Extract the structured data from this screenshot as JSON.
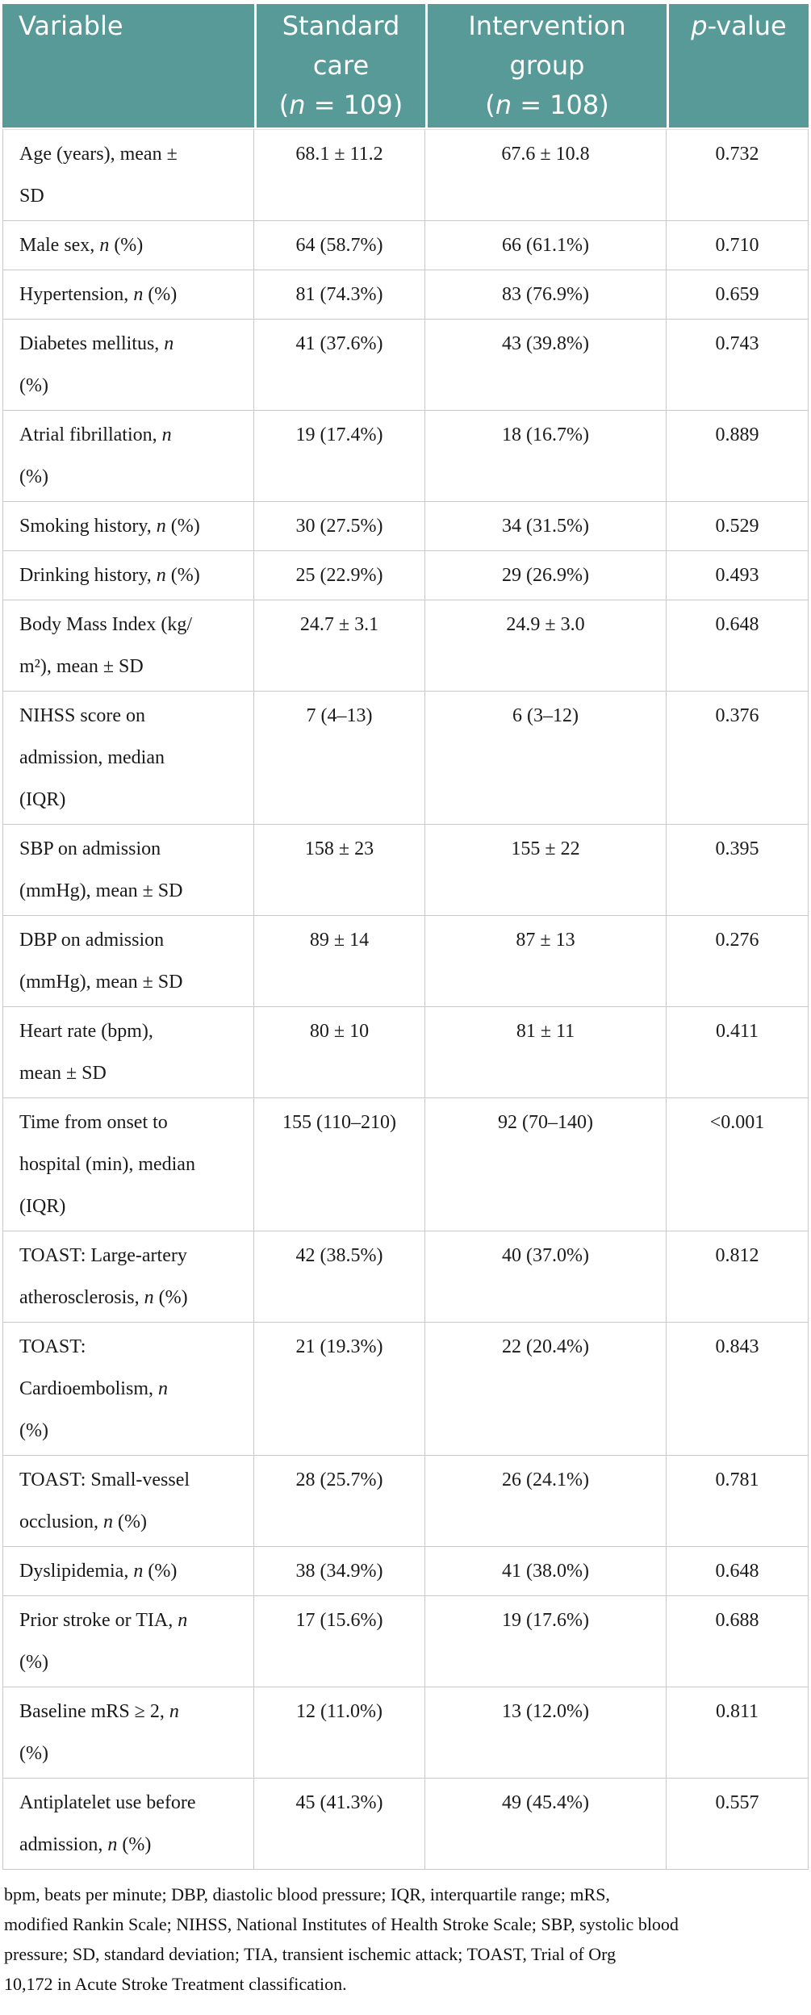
{
  "colors": {
    "header_bg": "#579a98",
    "header_text": "#ffffff",
    "border": "#c9c9c9",
    "body_text": "#1a1a1a"
  },
  "table": {
    "header": {
      "columns": [
        {
          "label": "Variable"
        },
        {
          "label": "Standard\ncare\n(*n* = 109)"
        },
        {
          "label": "Intervention\ngroup\n(*n* = 108)"
        },
        {
          "label": "*p*-value"
        }
      ]
    },
    "rows": [
      {
        "variable": "Age (years), mean ±\nSD",
        "standard_care": "68.1 ± 11.2",
        "intervention": "67.6 ± 10.8",
        "p_value": "0.732"
      },
      {
        "variable": "Male sex, *n* (%)",
        "standard_care": "64 (58.7%)",
        "intervention": "66 (61.1%)",
        "p_value": "0.710"
      },
      {
        "variable": "Hypertension, *n* (%)",
        "standard_care": "81 (74.3%)",
        "intervention": "83 (76.9%)",
        "p_value": "0.659"
      },
      {
        "variable": "Diabetes mellitus, *n*\n(%)",
        "standard_care": "41 (37.6%)",
        "intervention": "43 (39.8%)",
        "p_value": "0.743"
      },
      {
        "variable": "Atrial fibrillation, *n*\n(%)",
        "standard_care": "19 (17.4%)",
        "intervention": "18 (16.7%)",
        "p_value": "0.889"
      },
      {
        "variable": "Smoking history, *n* (%)",
        "standard_care": "30 (27.5%)",
        "intervention": "34 (31.5%)",
        "p_value": "0.529"
      },
      {
        "variable": "Drinking history, *n* (%)",
        "standard_care": "25 (22.9%)",
        "intervention": "29 (26.9%)",
        "p_value": "0.493"
      },
      {
        "variable": "Body Mass Index (kg/\nm²), mean ± SD",
        "standard_care": "24.7 ± 3.1",
        "intervention": "24.9 ± 3.0",
        "p_value": "0.648"
      },
      {
        "variable": "NIHSS score on\nadmission, median\n(IQR)",
        "standard_care": "7 (4–13)",
        "intervention": "6 (3–12)",
        "p_value": "0.376"
      },
      {
        "variable": "SBP on admission\n(mmHg), mean ± SD",
        "standard_care": "158 ± 23",
        "intervention": "155 ± 22",
        "p_value": "0.395"
      },
      {
        "variable": "DBP on admission\n(mmHg), mean ± SD",
        "standard_care": "89 ± 14",
        "intervention": "87 ± 13",
        "p_value": "0.276"
      },
      {
        "variable": "Heart rate (bpm),\nmean ± SD",
        "standard_care": "80 ± 10",
        "intervention": "81 ± 11",
        "p_value": "0.411"
      },
      {
        "variable": "Time from onset to\nhospital (min), median\n(IQR)",
        "standard_care": "155 (110–210)",
        "intervention": "92 (70–140)",
        "p_value": "<0.001"
      },
      {
        "variable": "TOAST: Large-artery\natherosclerosis, *n* (%)",
        "standard_care": "42 (38.5%)",
        "intervention": "40 (37.0%)",
        "p_value": "0.812"
      },
      {
        "variable": "TOAST:\nCardioembolism, *n*\n(%)",
        "standard_care": "21 (19.3%)",
        "intervention": "22 (20.4%)",
        "p_value": "0.843"
      },
      {
        "variable": "TOAST: Small-vessel\nocclusion, *n* (%)",
        "standard_care": "28 (25.7%)",
        "intervention": "26 (24.1%)",
        "p_value": "0.781"
      },
      {
        "variable": "Dyslipidemia, *n* (%)",
        "standard_care": "38 (34.9%)",
        "intervention": "41 (38.0%)",
        "p_value": "0.648"
      },
      {
        "variable": "Prior stroke or TIA, *n*\n(%)",
        "standard_care": "17 (15.6%)",
        "intervention": "19 (17.6%)",
        "p_value": "0.688"
      },
      {
        "variable": "Baseline mRS ≥ 2, *n*\n(%)",
        "standard_care": "12 (11.0%)",
        "intervention": "13 (12.0%)",
        "p_value": "0.811"
      },
      {
        "variable": "Antiplatelet use before\nadmission, *n* (%)",
        "standard_care": "45 (41.3%)",
        "intervention": "49 (45.4%)",
        "p_value": "0.557"
      }
    ],
    "footnote": "bpm, beats per minute; DBP, diastolic blood pressure; IQR, interquartile range; mRS,\nmodified Rankin Scale; NIHSS, National Institutes of Health Stroke Scale; SBP, systolic blood\npressure; SD, standard deviation; TIA, transient ischemic attack; TOAST, Trial of Org\n10,172 in Acute Stroke Treatment classification."
  }
}
